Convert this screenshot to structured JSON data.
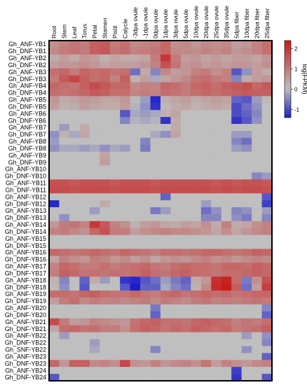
{
  "chart_data": {
    "type": "heatmap",
    "colorbar": {
      "label": "log(FPKM)",
      "ticks": [
        2,
        1,
        0,
        -1
      ],
      "range": [
        -1.4,
        2.4
      ],
      "colors": {
        "low": "#1c1cc8",
        "mid": "#bfbfbf",
        "high": "#c81c1c",
        "missing": "#bfbfbf"
      }
    },
    "columns": [
      "Root",
      "Stem",
      "Leaf",
      "Torus",
      "Petal",
      "Stamen",
      "Pistil",
      "Calycle",
      "-3dpa ovule",
      "-1dpa ovule",
      "0dpa ovule",
      "1dpa ovule",
      "3dpa ovule",
      "5dpa ovule",
      "10dpa ovule",
      "20dpa ovule",
      "25dpa ovule",
      "35dpa ovule",
      "5dpa fiber",
      "10dpa fiber",
      "20dpa fiber",
      "25dpa fiber"
    ],
    "rows": [
      "Gh_ANF-YB1",
      "Gh_DNF-YB1",
      "Gh_ANF-YB2",
      "Gh_DNF-YB2",
      "Gh_ANF-YB3",
      "Gh_DNF-YB3",
      "Gh_ANF-YB4",
      "Gh_DNF-YB4",
      "Gh_ANF-YB5",
      "Gh_DNF-YB5",
      "Gh_ANF-YB6",
      "Gh_DNF-YB6",
      "Gh_ANF-YB7",
      "Gh_DNF-YB7",
      "Gh_ANF-YB8",
      "Gh_DNF-YB8",
      "Gh_ANF-YB9",
      "Gh_DNF-YB9",
      "Gh_ANF-YB10",
      "Gh_DNF-YB10",
      "Gh_ANF-YB11",
      "Gh_DNF-YB11",
      "Gh_ANF-YB12",
      "Gh_DNF-YB12",
      "Gh_ANF-YB13",
      "Gh_DNF-YB13",
      "Gh_ANF-YB14",
      "Gh_DNF-YB14",
      "Gh_ANF-YB15",
      "Gh_DNF-YB15",
      "Gh_ANF-YB16",
      "Gh_DNF-YB16",
      "Gh_ANF-YB17",
      "Gh_DNF-YB17",
      "Gh_ANF-YB18",
      "Gh_DNF-YB18",
      "Gh_ANF-YB19",
      "Gh_DNF-YB19",
      "Gh_ANF-YB20",
      "Gh_DNF-YB20",
      "Gh_ANF-YB21",
      "Gh_DNF-YB21",
      "Gh_ANF-YB22",
      "Gh_DNF-YB22",
      "Gh_SNF-YB22",
      "Gh_ANF-YB23",
      "Gh_DNF-YB23",
      "Gh_ANF-YB24",
      "Gh_DNF-YB24"
    ],
    "values": [
      [
        0.7,
        0.9,
        1.1,
        1.0,
        1.4,
        1.5,
        1.0,
        1.2,
        0.8,
        0.9,
        1.0,
        1.3,
        0.7,
        0.8,
        0.6,
        0.8,
        0.7,
        0.8,
        0.5,
        0.6,
        0.9,
        1.2
      ],
      [
        0.8,
        1.0,
        1.1,
        1.0,
        1.4,
        1.5,
        1.1,
        1.2,
        0.9,
        1.0,
        1.1,
        1.3,
        0.8,
        0.8,
        0.7,
        0.9,
        0.8,
        0.9,
        0.6,
        0.7,
        0.9,
        1.2
      ],
      [
        0.3,
        0.5,
        0.3,
        0.6,
        0.5,
        0.2,
        0.4,
        0.3,
        0.3,
        0.4,
        1.0,
        2.0,
        1.0,
        0.5,
        0.6,
        0.4,
        0.5,
        0.4,
        0.5,
        0.5,
        0.4,
        0.6
      ],
      [
        0.5,
        0.6,
        0.6,
        0.7,
        0.6,
        0.4,
        0.5,
        0.5,
        0.5,
        0.6,
        0.9,
        1.6,
        1.1,
        0.6,
        0.7,
        0.5,
        0.6,
        0.5,
        0.6,
        0.6,
        0.5,
        0.7
      ],
      [
        1.2,
        1.3,
        1.0,
        1.3,
        1.2,
        1.3,
        1.1,
        1.2,
        -0.7,
        0.3,
        -0.5,
        0.8,
        0.5,
        0.6,
        0.9,
        1.0,
        0.7,
        0.9,
        -0.9,
        -0.4,
        0.5,
        0.3
      ],
      [
        1.0,
        1.5,
        1.8,
        1.4,
        1.2,
        1.3,
        0.9,
        1.4,
        0.2,
        0.5,
        -0.2,
        0.4,
        0.6,
        0.8,
        1.1,
        1.2,
        1.0,
        0.9,
        -0.5,
        0.3,
        0.5,
        0.6
      ],
      [
        1.3,
        1.2,
        1.1,
        1.4,
        1.7,
        1.5,
        1.3,
        1.3,
        0.8,
        0.9,
        0.9,
        1.3,
        1.2,
        1.0,
        1.3,
        1.4,
        1.2,
        1.4,
        1.5,
        1.6,
        1.3,
        1.5
      ],
      [
        1.2,
        1.1,
        1.2,
        1.3,
        1.5,
        1.4,
        1.2,
        1.2,
        0.9,
        1.0,
        0.9,
        1.2,
        1.1,
        1.0,
        1.2,
        1.3,
        1.2,
        1.3,
        1.4,
        1.5,
        1.4,
        1.4
      ],
      [
        0.6,
        0.3,
        0.4,
        0.6,
        0.5,
        0.4,
        0.4,
        0.6,
        0.1,
        -0.3,
        -1.3,
        0.2,
        0.4,
        0.5,
        0.3,
        0.4,
        0.5,
        0.4,
        -0.8,
        -0.9,
        -0.3,
        0.1
      ],
      [
        0.5,
        0.2,
        0.3,
        0.5,
        0.4,
        0.3,
        0.3,
        0.5,
        -0.1,
        -0.4,
        -1.2,
        0.1,
        0.3,
        0.4,
        0.2,
        0.3,
        0.4,
        0.3,
        -1.0,
        -0.7,
        -0.4,
        0.0
      ],
      [
        0.0,
        0.0,
        0.0,
        0.0,
        0.0,
        0.0,
        0.0,
        -0.9,
        -0.2,
        -0.3,
        -0.2,
        0.2,
        0.4,
        0.0,
        0.0,
        0.0,
        0.0,
        0.0,
        -1.0,
        -0.8,
        -0.5,
        0.0
      ],
      [
        0.0,
        0.0,
        0.0,
        0.0,
        0.0,
        0.0,
        0.0,
        -0.5,
        -0.1,
        -0.2,
        -0.1,
        -1.2,
        0.3,
        0.0,
        0.0,
        0.0,
        0.0,
        0.0,
        -1.2,
        -0.9,
        -0.4,
        0.0
      ],
      [
        0.0,
        -0.3,
        0.0,
        0.3,
        0.0,
        0.0,
        0.0,
        0.0,
        0.0,
        0.0,
        0.0,
        0.0,
        0.3,
        0.0,
        0.0,
        0.0,
        0.0,
        0.0,
        0.0,
        0.0,
        0.0,
        0.0
      ],
      [
        -0.4,
        0.2,
        -0.2,
        0.4,
        0.0,
        0.0,
        0.0,
        0.0,
        0.0,
        0.0,
        -0.2,
        -0.4,
        0.4,
        0.0,
        0.0,
        0.0,
        0.0,
        0.0,
        -0.3,
        -0.3,
        0.0,
        0.0
      ],
      [
        -0.3,
        0.0,
        0.0,
        0.0,
        0.0,
        0.0,
        0.0,
        0.0,
        0.0,
        -0.5,
        0.0,
        0.0,
        0.0,
        0.0,
        0.0,
        0.0,
        0.0,
        0.0,
        -0.5,
        -0.7,
        0.0,
        0.0
      ],
      [
        -0.4,
        -0.2,
        -0.2,
        -0.3,
        -0.2,
        -0.4,
        -0.2,
        -0.3,
        0.0,
        -0.6,
        0.0,
        0.0,
        0.0,
        0.0,
        0.0,
        0.0,
        0.0,
        0.0,
        -0.3,
        -0.4,
        0.0,
        0.0
      ],
      [
        0.0,
        0.0,
        0.0,
        0.0,
        0.0,
        0.4,
        0.0,
        0.0,
        0.0,
        0.0,
        0.0,
        0.0,
        0.0,
        0.0,
        0.0,
        0.0,
        0.0,
        0.0,
        0.0,
        0.0,
        0.0,
        0.0
      ],
      [
        0.0,
        0.0,
        0.0,
        0.0,
        0.0,
        0.5,
        0.0,
        0.0,
        0.0,
        0.0,
        0.0,
        0.0,
        0.0,
        0.0,
        0.0,
        0.0,
        0.0,
        0.0,
        0.0,
        0.0,
        0.0,
        0.0
      ],
      [
        0.0,
        0.0,
        0.0,
        0.0,
        0.0,
        0.0,
        0.0,
        0.0,
        0.0,
        0.0,
        0.0,
        0.0,
        0.0,
        0.0,
        0.0,
        0.0,
        0.0,
        0.0,
        0.0,
        0.0,
        0.0,
        0.0
      ],
      [
        0.0,
        0.0,
        0.0,
        0.0,
        0.0,
        0.0,
        0.0,
        0.0,
        0.0,
        0.0,
        0.0,
        0.0,
        0.0,
        0.0,
        0.0,
        0.0,
        0.0,
        0.0,
        0.0,
        0.0,
        -0.5,
        -0.3
      ],
      [
        1.6,
        1.6,
        1.5,
        1.6,
        1.6,
        1.6,
        1.5,
        1.6,
        1.6,
        1.6,
        1.5,
        1.6,
        1.6,
        1.6,
        1.6,
        1.6,
        1.5,
        1.6,
        1.5,
        1.6,
        1.6,
        1.5
      ],
      [
        1.7,
        1.7,
        1.6,
        1.7,
        1.7,
        1.7,
        1.6,
        1.7,
        1.7,
        1.7,
        1.6,
        1.7,
        1.7,
        1.7,
        1.7,
        1.7,
        1.6,
        1.7,
        1.6,
        1.7,
        1.7,
        1.6
      ],
      [
        0.0,
        0.0,
        0.0,
        0.0,
        0.0,
        0.0,
        0.0,
        0.0,
        0.0,
        0.0,
        0.0,
        -0.8,
        0.0,
        0.0,
        0.0,
        0.0,
        0.0,
        0.0,
        0.0,
        0.0,
        0.0,
        -0.9
      ],
      [
        -1.3,
        0.0,
        0.0,
        0.0,
        0.0,
        0.3,
        0.0,
        0.0,
        0.0,
        0.0,
        0.0,
        0.0,
        0.0,
        0.0,
        0.0,
        -0.3,
        0.0,
        0.0,
        0.0,
        0.0,
        0.0,
        -1.1
      ],
      [
        0.0,
        0.0,
        0.0,
        0.0,
        -0.3,
        0.0,
        0.0,
        0.0,
        0.0,
        0.0,
        -0.6,
        -0.3,
        0.0,
        0.0,
        0.0,
        -0.7,
        -0.4,
        0.0,
        -0.5,
        -0.4,
        0.0,
        -0.3
      ],
      [
        0.0,
        -0.4,
        0.0,
        0.0,
        0.0,
        0.0,
        0.0,
        0.0,
        0.0,
        0.0,
        0.0,
        0.0,
        0.0,
        0.0,
        0.0,
        -0.5,
        -0.5,
        0.0,
        -0.4,
        -0.6,
        0.0,
        -0.5
      ],
      [
        0.6,
        1.0,
        1.1,
        0.9,
        2.0,
        1.5,
        0.9,
        0.7,
        0.2,
        0.5,
        0.6,
        0.4,
        0.3,
        0.5,
        0.4,
        0.7,
        0.3,
        0.9,
        0.3,
        0.4,
        0.7,
        0.9
      ],
      [
        0.9,
        1.0,
        0.8,
        0.7,
        1.3,
        1.6,
        1.0,
        1.0,
        0.5,
        0.7,
        0.8,
        0.9,
        0.8,
        0.8,
        0.7,
        0.6,
        0.4,
        0.7,
        0.4,
        0.6,
        0.8,
        0.9
      ],
      [
        0.0,
        0.0,
        0.0,
        0.0,
        0.0,
        0.0,
        0.0,
        0.0,
        0.0,
        0.0,
        0.0,
        0.0,
        0.0,
        0.0,
        0.0,
        0.0,
        0.0,
        0.0,
        0.0,
        0.0,
        0.0,
        0.0
      ],
      [
        0.0,
        0.0,
        0.0,
        0.0,
        0.0,
        0.0,
        0.0,
        0.0,
        0.0,
        0.0,
        0.0,
        0.0,
        0.0,
        0.0,
        0.0,
        0.0,
        0.0,
        0.0,
        0.0,
        0.0,
        0.0,
        0.0
      ],
      [
        1.3,
        1.2,
        1.1,
        1.2,
        1.3,
        1.2,
        1.1,
        1.3,
        1.2,
        1.1,
        1.0,
        1.2,
        1.2,
        1.1,
        1.2,
        1.3,
        1.3,
        1.2,
        1.1,
        1.2,
        1.4,
        1.3
      ],
      [
        0.4,
        0.9,
        0.7,
        0.6,
        1.0,
        0.9,
        0.6,
        0.8,
        0.5,
        0.7,
        0.4,
        0.6,
        0.7,
        0.6,
        0.8,
        0.9,
        0.7,
        0.8,
        0.6,
        0.8,
        0.9,
        0.8
      ],
      [
        0.9,
        1.3,
        1.2,
        1.0,
        1.0,
        1.2,
        1.0,
        1.1,
        1.2,
        1.3,
        1.1,
        1.0,
        1.2,
        1.3,
        1.2,
        1.2,
        1.1,
        1.3,
        1.3,
        1.2,
        1.4,
        1.3
      ],
      [
        1.0,
        1.4,
        1.3,
        1.1,
        1.2,
        1.1,
        1.2,
        1.1,
        1.2,
        1.4,
        1.2,
        1.1,
        1.3,
        1.4,
        1.2,
        1.2,
        1.1,
        1.2,
        1.2,
        1.3,
        1.4,
        1.3
      ],
      [
        0.2,
        -0.5,
        0.0,
        -0.8,
        0.3,
        -0.3,
        0.0,
        -1.2,
        -1.3,
        -0.9,
        -0.7,
        -0.3,
        -0.6,
        -0.8,
        0.3,
        0.6,
        2.1,
        2.3,
        1.2,
        -0.6,
        0.7,
        1.6
      ],
      [
        0.1,
        -0.4,
        0.0,
        -0.9,
        0.0,
        0.0,
        0.0,
        -0.9,
        -1.4,
        -0.8,
        -0.8,
        -0.2,
        -0.5,
        -0.7,
        0.2,
        0.8,
        2.2,
        2.4,
        1.4,
        -0.7,
        0.5,
        1.9
      ],
      [
        1.2,
        1.2,
        1.1,
        1.3,
        1.4,
        1.2,
        1.1,
        1.1,
        1.3,
        1.1,
        1.0,
        1.2,
        1.3,
        1.1,
        1.2,
        1.3,
        1.2,
        1.3,
        1.1,
        1.2,
        1.3,
        1.3
      ],
      [
        0.5,
        1.0,
        1.2,
        0.8,
        1.0,
        0.9,
        0.9,
        0.8,
        0.9,
        1.0,
        0.8,
        1.0,
        0.9,
        0.8,
        1.0,
        1.1,
        0.9,
        1.0,
        0.9,
        1.0,
        1.1,
        1.0
      ],
      [
        0.0,
        0.0,
        0.0,
        0.0,
        0.0,
        0.0,
        0.0,
        0.0,
        0.0,
        0.0,
        -0.6,
        0.0,
        0.0,
        0.0,
        0.0,
        0.0,
        0.0,
        0.0,
        0.0,
        0.0,
        0.0,
        -0.5
      ],
      [
        0.0,
        0.0,
        0.0,
        0.0,
        0.0,
        0.0,
        0.0,
        0.0,
        0.0,
        0.0,
        -0.8,
        0.0,
        0.0,
        0.0,
        0.0,
        0.0,
        0.0,
        0.0,
        0.0,
        0.0,
        0.0,
        -0.8
      ],
      [
        1.7,
        1.0,
        0.5,
        0.6,
        0.9,
        0.8,
        0.7,
        0.6,
        1.1,
        1.3,
        1.4,
        1.2,
        1.2,
        1.1,
        1.3,
        1.4,
        1.3,
        1.2,
        0.9,
        1.1,
        1.0,
        1.2
      ],
      [
        0.4,
        1.2,
        1.3,
        1.1,
        1.2,
        1.0,
        1.0,
        0.7,
        1.2,
        1.4,
        1.3,
        1.1,
        1.3,
        1.2,
        1.4,
        1.3,
        1.2,
        1.3,
        1.0,
        1.1,
        1.2,
        1.4
      ],
      [
        0.0,
        -0.3,
        0.0,
        0.0,
        0.0,
        0.0,
        0.0,
        0.0,
        0.0,
        0.0,
        0.0,
        0.0,
        0.0,
        0.0,
        0.0,
        0.0,
        0.0,
        0.0,
        0.0,
        -0.3,
        0.0,
        -0.4
      ],
      [
        0.0,
        0.0,
        0.0,
        0.0,
        -0.3,
        0.0,
        0.0,
        0.0,
        0.0,
        0.0,
        0.0,
        0.0,
        0.0,
        0.0,
        0.0,
        0.0,
        0.0,
        0.0,
        0.0,
        0.0,
        0.0,
        -0.5
      ],
      [
        0.0,
        0.0,
        0.0,
        0.0,
        -0.2,
        0.0,
        0.0,
        0.0,
        0.0,
        0.0,
        -0.5,
        0.0,
        0.0,
        0.0,
        0.0,
        0.0,
        0.0,
        0.0,
        0.0,
        -0.4,
        0.0,
        0.0
      ],
      [
        0.0,
        0.0,
        0.0,
        0.0,
        0.0,
        0.0,
        0.0,
        0.0,
        0.0,
        0.0,
        0.0,
        0.0,
        0.0,
        0.0,
        0.0,
        0.0,
        0.0,
        0.0,
        0.0,
        0.0,
        0.0,
        -0.8
      ],
      [
        1.3,
        0.6,
        1.4,
        1.4,
        0.8,
        0.9,
        0.7,
        1.8,
        0.7,
        0.6,
        0.9,
        0.6,
        0.8,
        0.9,
        0.7,
        1.1,
        0.5,
        0.9,
        0.7,
        0.6,
        0.8,
        0.9
      ],
      [
        0.0,
        0.0,
        0.0,
        0.0,
        0.0,
        0.0,
        0.0,
        0.0,
        0.0,
        0.0,
        0.0,
        0.0,
        0.0,
        0.0,
        0.0,
        0.0,
        0.0,
        0.0,
        -1.1,
        0.0,
        0.0,
        0.0
      ],
      [
        -0.9,
        0.0,
        0.0,
        0.0,
        0.0,
        0.0,
        0.0,
        0.0,
        0.0,
        0.0,
        0.0,
        0.0,
        0.0,
        0.0,
        0.0,
        0.0,
        0.0,
        0.0,
        -1.2,
        0.0,
        0.0,
        -0.9
      ]
    ]
  }
}
